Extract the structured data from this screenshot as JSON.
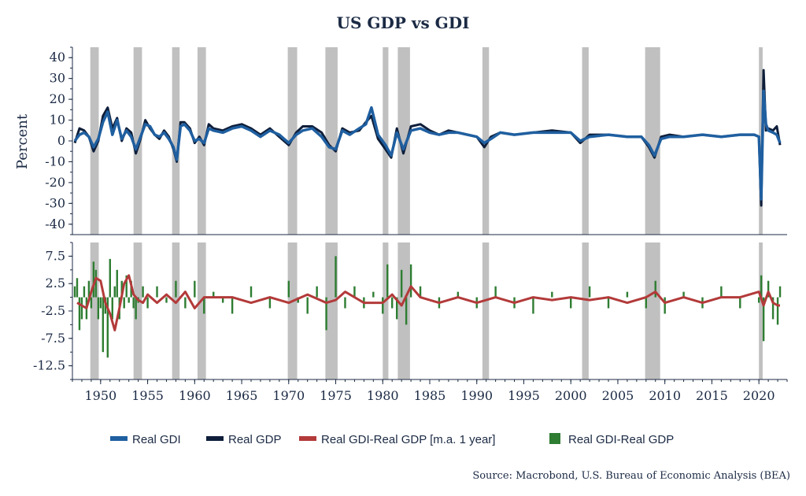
{
  "chart_data": {
    "type": "line",
    "title": "US GDP vs GDI",
    "source": "Source: Macrobond, U.S. Bureau of Economic Analysis (BEA)",
    "colors": {
      "real_gdi": "#1f5fa0",
      "real_gdp": "#0e1e3a",
      "diff_ma": "#b33a3a",
      "diff": "#2e7d32",
      "recession": "#c0c0c0"
    },
    "xlim": [
      1947,
      2023
    ],
    "x_ticks": [
      {
        "value": 1950,
        "label": "1950"
      },
      {
        "value": 1955,
        "label": "1955"
      },
      {
        "value": 1960,
        "label": "1960"
      },
      {
        "value": 1965,
        "label": "1965"
      },
      {
        "value": 1970,
        "label": "1970"
      },
      {
        "value": 1975,
        "label": "1975"
      },
      {
        "value": 1980,
        "label": "1980"
      },
      {
        "value": 1985,
        "label": "1985"
      },
      {
        "value": 1990,
        "label": "1990"
      },
      {
        "value": 1995,
        "label": "1995"
      },
      {
        "value": 2000,
        "label": "2000"
      },
      {
        "value": 2005,
        "label": "2005"
      },
      {
        "value": 2010,
        "label": "2010"
      },
      {
        "value": 2015,
        "label": "2015"
      },
      {
        "value": 2020,
        "label": "2020"
      }
    ],
    "recessions": [
      [
        1948.9,
        1949.8
      ],
      [
        1953.5,
        1954.4
      ],
      [
        1957.6,
        1958.4
      ],
      [
        1960.3,
        1961.2
      ],
      [
        1969.9,
        1970.9
      ],
      [
        1973.9,
        1975.2
      ],
      [
        1980.0,
        1980.6
      ],
      [
        1981.6,
        1982.9
      ],
      [
        1990.6,
        1991.3
      ],
      [
        2001.2,
        2001.9
      ],
      [
        2007.9,
        2009.5
      ],
      [
        2020.0,
        2020.4
      ]
    ],
    "top_panel": {
      "ylabel": "Percent",
      "ylim": [
        -45,
        45
      ],
      "y_ticks": [
        {
          "value": 40,
          "label": "40"
        },
        {
          "value": 30,
          "label": "30"
        },
        {
          "value": 20,
          "label": "20"
        },
        {
          "value": 10,
          "label": "10"
        },
        {
          "value": 0,
          "label": "0"
        },
        {
          "value": -10,
          "label": "-10"
        },
        {
          "value": -20,
          "label": "-20"
        },
        {
          "value": -30,
          "label": "-30"
        },
        {
          "value": -40,
          "label": "-40"
        }
      ],
      "series": [
        {
          "name": "Real GDI",
          "key": "real_gdi",
          "x": [
            1947.25,
            1947.75,
            1948.25,
            1948.75,
            1949.25,
            1949.75,
            1950.25,
            1950.75,
            1951.25,
            1951.75,
            1952.25,
            1952.75,
            1953.25,
            1953.75,
            1954.25,
            1954.75,
            1955.25,
            1955.75,
            1956.25,
            1956.75,
            1957.25,
            1957.75,
            1958.1,
            1958.5,
            1958.9,
            1959.5,
            1960.0,
            1960.5,
            1961.0,
            1961.5,
            1962.0,
            1963.0,
            1964.0,
            1965.0,
            1966.0,
            1967.0,
            1968.0,
            1969.0,
            1970.0,
            1970.8,
            1971.5,
            1972.5,
            1973.5,
            1974.3,
            1975.0,
            1975.7,
            1976.5,
            1977.5,
            1978.2,
            1978.8,
            1979.5,
            1980.3,
            1980.9,
            1981.5,
            1982.2,
            1983.0,
            1984.0,
            1985.0,
            1986.0,
            1987.0,
            1988.0,
            1989.0,
            1990.0,
            1990.8,
            1991.5,
            1992.5,
            1994.0,
            1996.0,
            1998.0,
            2000.0,
            2001.0,
            2002.0,
            2004.0,
            2006.0,
            2007.5,
            2008.3,
            2008.9,
            2009.6,
            2010.5,
            2012.0,
            2014.0,
            2016.0,
            2018.0,
            2019.5,
            2020.0,
            2020.25,
            2020.5,
            2020.75,
            2021.0,
            2021.5,
            2021.9,
            2022.25
          ],
          "values": [
            0,
            3,
            4,
            2,
            -3,
            1,
            9,
            14,
            3,
            10,
            1,
            5,
            2,
            -4,
            2,
            8,
            7,
            3,
            2,
            4,
            1,
            -3,
            -9,
            7,
            8,
            5,
            0,
            1,
            -1,
            6,
            5,
            4,
            6,
            7,
            5,
            2,
            5,
            3,
            -1,
            3,
            5,
            6,
            2,
            -3,
            -4,
            5,
            3,
            6,
            8,
            16,
            3,
            -2,
            -7,
            4,
            -4,
            5,
            6,
            4,
            3,
            4,
            4,
            3,
            2,
            -1,
            1,
            4,
            3,
            4,
            4,
            4,
            0,
            2,
            3,
            2,
            2,
            -2,
            -7,
            1,
            2,
            2,
            3,
            2,
            3,
            3,
            2,
            -28,
            24,
            8,
            5,
            4,
            3,
            -1
          ]
        },
        {
          "name": "Real GDP",
          "key": "real_gdp",
          "x": [
            1947.25,
            1947.75,
            1948.25,
            1948.75,
            1949.25,
            1949.75,
            1950.25,
            1950.75,
            1951.25,
            1951.75,
            1952.25,
            1952.75,
            1953.25,
            1953.75,
            1954.25,
            1954.75,
            1955.25,
            1955.75,
            1956.25,
            1956.75,
            1957.25,
            1957.75,
            1958.1,
            1958.5,
            1958.9,
            1959.5,
            1960.0,
            1960.5,
            1961.0,
            1961.5,
            1962.0,
            1963.0,
            1964.0,
            1965.0,
            1966.0,
            1967.0,
            1968.0,
            1969.0,
            1970.0,
            1970.8,
            1971.5,
            1972.5,
            1973.5,
            1974.3,
            1975.0,
            1975.7,
            1976.5,
            1977.5,
            1978.2,
            1978.8,
            1979.5,
            1980.3,
            1980.9,
            1981.5,
            1982.2,
            1983.0,
            1984.0,
            1985.0,
            1986.0,
            1987.0,
            1988.0,
            1989.0,
            1990.0,
            1990.8,
            1991.5,
            1992.5,
            1994.0,
            1996.0,
            1998.0,
            2000.0,
            2001.0,
            2002.0,
            2004.0,
            2006.0,
            2007.5,
            2008.3,
            2008.9,
            2009.6,
            2010.5,
            2012.0,
            2014.0,
            2016.0,
            2018.0,
            2019.5,
            2020.0,
            2020.25,
            2020.5,
            2020.75,
            2021.0,
            2021.5,
            2021.9,
            2022.25
          ],
          "values": [
            -1,
            6,
            5,
            2,
            -5,
            0,
            12,
            16,
            6,
            11,
            0,
            6,
            4,
            -6,
            1,
            10,
            6,
            3,
            1,
            5,
            2,
            -4,
            -10,
            9,
            9,
            6,
            -1,
            2,
            -2,
            8,
            6,
            5,
            7,
            8,
            6,
            3,
            6,
            2,
            -2,
            4,
            7,
            7,
            4,
            -2,
            -5,
            6,
            4,
            5,
            9,
            12,
            1,
            -4,
            -8,
            6,
            -6,
            7,
            8,
            5,
            3,
            5,
            4,
            3,
            2,
            -3,
            2,
            4,
            3,
            4,
            5,
            4,
            -1,
            3,
            3,
            2,
            2,
            -3,
            -8,
            2,
            3,
            2,
            3,
            2,
            3,
            3,
            2,
            -31,
            34,
            5,
            6,
            5,
            7,
            -2
          ]
        }
      ]
    },
    "bottom_panel": {
      "ylim": [
        -15,
        10
      ],
      "y_ticks": [
        {
          "value": 7.5,
          "label": "7.5"
        },
        {
          "value": 2.5,
          "label": "2.5"
        },
        {
          "value": -2.5,
          "label": "-2.5"
        },
        {
          "value": -7.5,
          "label": "-7.5"
        },
        {
          "value": -12.5,
          "label": "-12.5"
        }
      ],
      "series": [
        {
          "name": "Real GDI-Real GDP [m.a. 1 year]",
          "key": "diff_ma",
          "x": [
            1947.5,
            1948.0,
            1948.5,
            1949.0,
            1949.5,
            1950.0,
            1950.5,
            1951.0,
            1951.5,
            1952.0,
            1952.5,
            1953.0,
            1953.5,
            1954.0,
            1954.5,
            1955.0,
            1956.0,
            1957.0,
            1958.0,
            1959.0,
            1960.0,
            1961.0,
            1962.0,
            1964.0,
            1966.0,
            1968.0,
            1970.0,
            1972.0,
            1974.0,
            1975.0,
            1976.0,
            1978.0,
            1980.0,
            1981.0,
            1982.0,
            1983.0,
            1984.0,
            1986.0,
            1988.0,
            1990.0,
            1992.0,
            1994.0,
            1996.0,
            1998.0,
            2000.0,
            2002.0,
            2004.0,
            2006.0,
            2008.0,
            2009.0,
            2010.0,
            2012.0,
            2014.0,
            2016.0,
            2018.0,
            2020.0,
            2020.5,
            2021.0,
            2021.5,
            2022.0,
            2022.25
          ],
          "values": [
            -1,
            -1.5,
            -2,
            1,
            3.5,
            3,
            -1,
            -3,
            -6,
            -2,
            2.5,
            4,
            0.5,
            -0.5,
            -1,
            0.5,
            -1,
            0.5,
            -1,
            1,
            -2,
            0,
            0,
            0,
            -1,
            0,
            -1,
            0.5,
            -1,
            -0.5,
            1,
            -1,
            -1,
            0.5,
            -1.5,
            2,
            0,
            -1,
            0,
            -1,
            0,
            -1,
            0,
            -0.5,
            0,
            -0.5,
            0,
            -1,
            0,
            1,
            -1,
            0,
            -1,
            0,
            0,
            1,
            -1.5,
            1,
            -1,
            -1.5,
            -1.5
          ]
        },
        {
          "name": "Real GDI-Real GDP",
          "key": "diff",
          "x": [
            1947.25,
            1947.5,
            1947.75,
            1948.0,
            1948.25,
            1948.5,
            1948.75,
            1949.0,
            1949.25,
            1949.5,
            1949.75,
            1950.0,
            1950.25,
            1950.5,
            1950.75,
            1951.0,
            1951.25,
            1951.5,
            1951.75,
            1952.0,
            1952.25,
            1952.5,
            1952.75,
            1953.0,
            1953.25,
            1953.5,
            1953.75,
            1954.0,
            1954.5,
            1955.0,
            1956.0,
            1957.0,
            1958.0,
            1959.0,
            1960.0,
            1961.0,
            1962.0,
            1963.0,
            1964.0,
            1966.0,
            1968.0,
            1970.0,
            1971.0,
            1972.0,
            1973.0,
            1974.0,
            1975.0,
            1976.0,
            1977.0,
            1978.0,
            1979.0,
            1980.0,
            1980.5,
            1981.0,
            1981.5,
            1982.0,
            1982.5,
            1983.0,
            1984.0,
            1986.0,
            1988.0,
            1990.0,
            1992.0,
            1994.0,
            1996.0,
            1998.0,
            2000.0,
            2002.0,
            2004.0,
            2006.0,
            2008.0,
            2009.0,
            2010.0,
            2012.0,
            2014.0,
            2016.0,
            2018.0,
            2020.0,
            2020.25,
            2020.5,
            2021.0,
            2021.5,
            2022.0,
            2022.25
          ],
          "values": [
            2,
            3.5,
            -6,
            -4,
            2,
            -4,
            3,
            -2,
            6.5,
            5,
            -4,
            -2,
            -10,
            -3,
            -11,
            7,
            -4,
            2,
            5,
            -4,
            3,
            -2,
            4,
            -1,
            3,
            -2,
            -4,
            -1,
            2,
            -2,
            2,
            -1,
            3,
            -2,
            3,
            -3,
            1,
            -1,
            -3,
            2,
            -2,
            3,
            -1,
            -3,
            2,
            -6,
            7.5,
            -2,
            2,
            -2,
            1,
            -3,
            6,
            -2,
            -4,
            5,
            -5,
            6,
            2,
            -2,
            1,
            -2,
            2,
            -2,
            -3,
            1,
            -2,
            2,
            -2,
            1,
            -2,
            3,
            -3,
            1,
            -2,
            2,
            -2,
            -1,
            4,
            -8,
            3,
            -4,
            -5,
            2
          ]
        }
      ]
    },
    "legend": {
      "placement": "bottom"
    }
  }
}
